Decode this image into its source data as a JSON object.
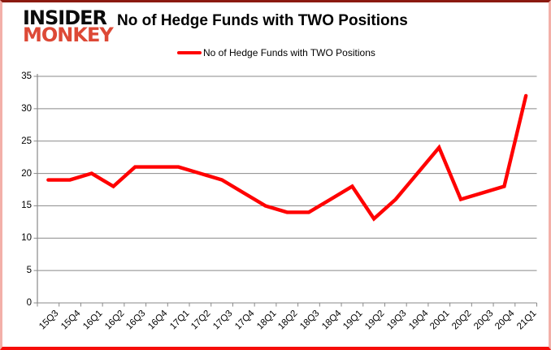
{
  "logo": {
    "line1": "INSIDER",
    "line2": "MONKEY"
  },
  "title": "No of Hedge Funds with TWO Positions",
  "legend": {
    "label": "No of Hedge Funds with TWO Positions",
    "color": "#ff0000"
  },
  "colors": {
    "series_line": "#ff0000",
    "gridline": "#898989",
    "axis": "#898989",
    "logo_primary": "#0b0b0b",
    "logo_secondary": "#dd4936"
  },
  "chart_data": {
    "type": "line",
    "title": "No of Hedge Funds with TWO Positions",
    "categories": [
      "15Q3",
      "15Q4",
      "16Q1",
      "16Q2",
      "16Q3",
      "16Q4",
      "17Q1",
      "17Q2",
      "17Q3",
      "17Q4",
      "18Q1",
      "18Q2",
      "18Q3",
      "18Q4",
      "19Q1",
      "19Q2",
      "19Q3",
      "19Q4",
      "20Q1",
      "20Q2",
      "20Q3",
      "20Q4",
      "21Q1"
    ],
    "series": [
      {
        "name": "No of Hedge Funds with TWO Positions",
        "color": "#ff0000",
        "values": [
          19,
          19,
          20,
          18,
          21,
          21,
          21,
          20,
          19,
          17,
          15,
          14,
          14,
          16,
          18,
          13,
          16,
          20,
          24,
          16,
          17,
          18,
          32
        ]
      }
    ],
    "xlabel": "",
    "ylabel": "",
    "ylim": [
      0,
      35
    ],
    "yticks": [
      0,
      5,
      10,
      15,
      20,
      25,
      30,
      35
    ],
    "grid": "horizontal",
    "legend_position": "top"
  }
}
